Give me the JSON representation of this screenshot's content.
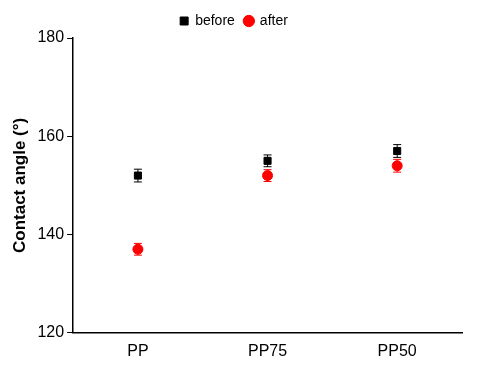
{
  "chart_data": {
    "type": "scatter",
    "y_label": "Contact angle (°)",
    "categories": [
      "PP",
      "PP75",
      "PP50"
    ],
    "series": [
      {
        "name": "before",
        "color": "#000000",
        "marker": "square",
        "values": [
          152,
          155,
          157
        ],
        "errors": [
          1.3,
          1.2,
          1.3
        ]
      },
      {
        "name": "after",
        "color": "#ff0000",
        "marker": "circle",
        "values": [
          137,
          152,
          154
        ],
        "errors": [
          1.2,
          1.2,
          1.3
        ]
      }
    ],
    "ylim": [
      120,
      180
    ],
    "yticks": [
      120,
      140,
      160,
      180
    ],
    "grid": false,
    "legend": "top"
  }
}
